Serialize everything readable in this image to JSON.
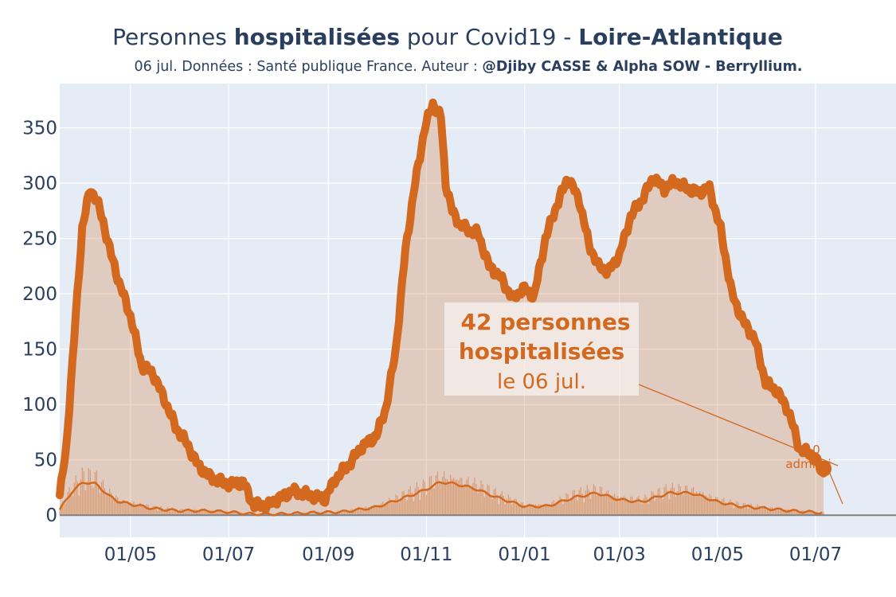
{
  "title": {
    "prefix": "Personnes ",
    "bold1": "hospitalisées",
    "middle": " pour Covid19 - ",
    "bold2": "Loire-Atlantique"
  },
  "subtitle": {
    "text": "06 jul. Données : Santé publique France. Auteur : ",
    "bold": "@Djiby CASSE & Alpha SOW - Berryllium."
  },
  "annotation_main": {
    "line1": "42 personnes",
    "line2": "hospitalisées",
    "line3": "le 06 jul."
  },
  "annotation_secondary": {
    "line1": "0",
    "line2": "admissi"
  },
  "colors": {
    "line": "#d2691e",
    "fill": "rgba(210,105,30,0.25)",
    "plot_bg": "#e5ecf6",
    "grid": "#ffffff",
    "text": "#2a3f5f"
  },
  "chart_data": {
    "type": "area",
    "grid": true,
    "legend": "none",
    "xlim": [
      "2020-03-18",
      "2021-08-20"
    ],
    "ylim": [
      -20,
      390
    ],
    "x_tick_labels": [
      "01/05",
      "01/07",
      "01/09",
      "01/11",
      "01/01",
      "01/03",
      "01/05",
      "01/07"
    ],
    "x_tick_dates": [
      "2020-05-01",
      "2020-07-01",
      "2020-09-01",
      "2020-11-01",
      "2021-01-01",
      "2021-03-01",
      "2021-05-01",
      "2021-07-01"
    ],
    "y_ticks": [
      0,
      50,
      100,
      150,
      200,
      250,
      300,
      350
    ],
    "series": [
      {
        "role": "hospitalisations",
        "x": [
          "2020-03-18",
          "2020-03-22",
          "2020-03-27",
          "2020-04-01",
          "2020-04-06",
          "2020-04-10",
          "2020-04-14",
          "2020-04-19",
          "2020-04-24",
          "2020-05-01",
          "2020-05-08",
          "2020-05-15",
          "2020-05-22",
          "2020-05-29",
          "2020-06-05",
          "2020-06-12",
          "2020-06-19",
          "2020-06-26",
          "2020-07-03",
          "2020-07-10",
          "2020-07-17",
          "2020-07-22",
          "2020-07-25",
          "2020-08-01",
          "2020-08-10",
          "2020-08-20",
          "2020-08-30",
          "2020-09-05",
          "2020-09-15",
          "2020-09-22",
          "2020-10-01",
          "2020-10-07",
          "2020-10-13",
          "2020-10-19",
          "2020-10-25",
          "2020-10-31",
          "2020-11-05",
          "2020-11-10",
          "2020-11-13",
          "2020-11-17",
          "2020-11-22",
          "2020-11-27",
          "2020-12-03",
          "2020-12-10",
          "2020-12-17",
          "2020-12-25",
          "2020-12-31",
          "2021-01-07",
          "2021-01-14",
          "2021-01-21",
          "2021-01-28",
          "2021-02-04",
          "2021-02-10",
          "2021-02-16",
          "2021-02-22",
          "2021-03-01",
          "2021-03-08",
          "2021-03-15",
          "2021-03-22",
          "2021-03-29",
          "2021-04-05",
          "2021-04-12",
          "2021-04-19",
          "2021-04-26",
          "2021-05-03",
          "2021-05-10",
          "2021-05-17",
          "2021-05-24",
          "2021-05-31",
          "2021-06-07",
          "2021-06-14",
          "2021-06-21",
          "2021-06-28",
          "2021-07-06"
        ],
        "values": [
          18,
          60,
          160,
          260,
          295,
          285,
          265,
          235,
          210,
          180,
          135,
          128,
          105,
          80,
          65,
          45,
          35,
          30,
          28,
          30,
          8,
          10,
          8,
          15,
          22,
          18,
          15,
          32,
          48,
          62,
          72,
          98,
          150,
          240,
          300,
          350,
          372,
          360,
          300,
          275,
          262,
          258,
          255,
          225,
          215,
          195,
          205,
          198,
          250,
          280,
          305,
          285,
          245,
          225,
          220,
          235,
          270,
          285,
          305,
          295,
          302,
          295,
          292,
          295,
          258,
          200,
          175,
          160,
          120,
          112,
          95,
          60,
          55,
          42
        ]
      },
      {
        "role": "admissions-smoothed",
        "x": [
          "2020-03-18",
          "2020-03-26",
          "2020-04-02",
          "2020-04-10",
          "2020-04-17",
          "2020-04-24",
          "2020-05-01",
          "2020-05-15",
          "2020-05-30",
          "2020-06-15",
          "2020-06-30",
          "2020-07-15",
          "2020-08-01",
          "2020-08-20",
          "2020-09-10",
          "2020-09-30",
          "2020-10-15",
          "2020-10-30",
          "2020-11-10",
          "2020-11-20",
          "2020-12-01",
          "2020-12-15",
          "2021-01-01",
          "2021-01-15",
          "2021-02-01",
          "2021-02-15",
          "2021-03-01",
          "2021-03-15",
          "2021-04-01",
          "2021-04-15",
          "2021-05-01",
          "2021-05-15",
          "2021-06-01",
          "2021-06-15",
          "2021-07-06"
        ],
        "values": [
          5,
          22,
          30,
          28,
          18,
          12,
          10,
          6,
          4,
          4,
          3,
          1,
          1,
          2,
          3,
          7,
          14,
          22,
          30,
          28,
          24,
          16,
          8,
          8,
          16,
          20,
          14,
          12,
          20,
          20,
          12,
          8,
          6,
          4,
          2
        ]
      }
    ]
  }
}
